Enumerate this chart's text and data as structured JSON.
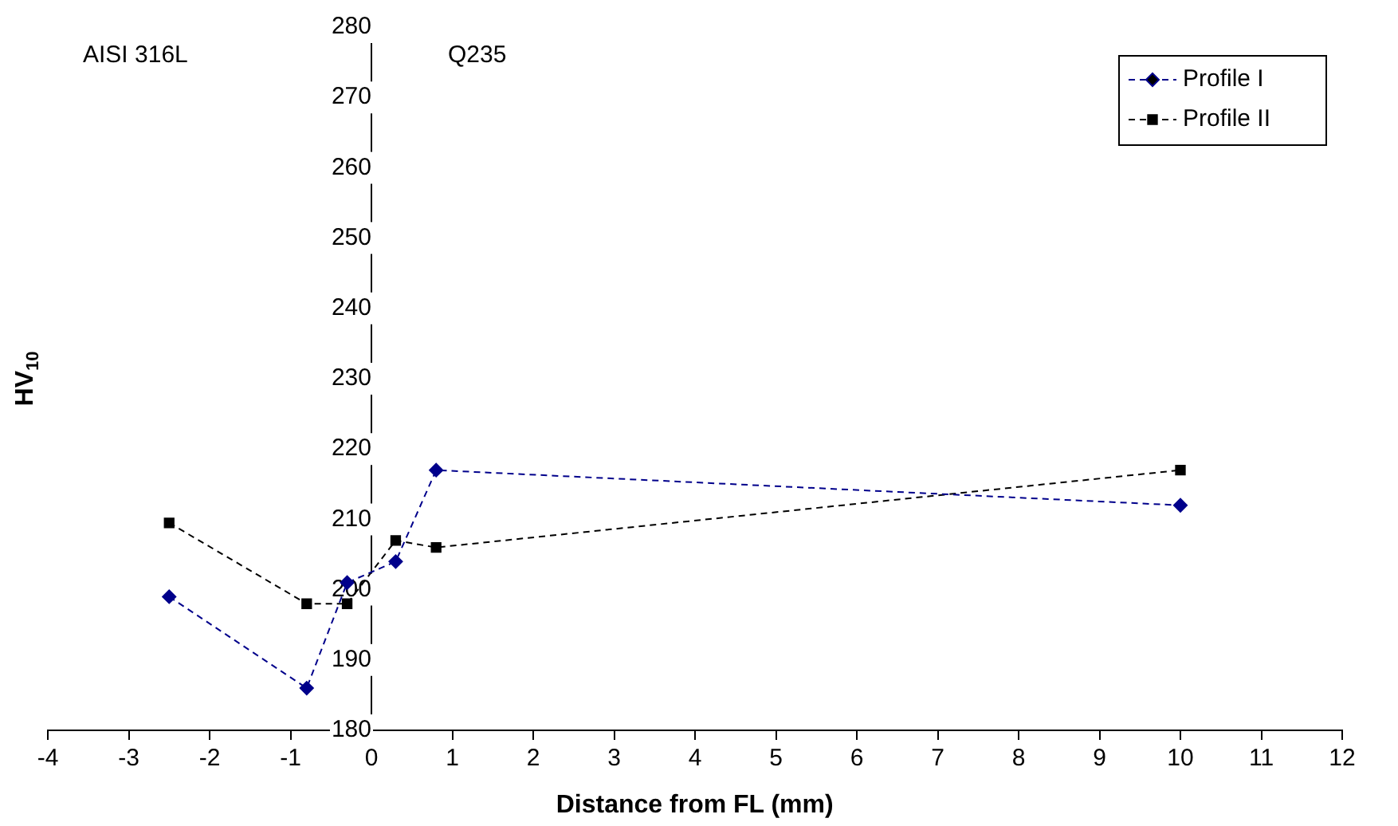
{
  "chart_data": {
    "type": "line",
    "xlabel": "Distance from FL (mm)",
    "ylabel": "HV$_{10}$",
    "xlim": [
      -4,
      12
    ],
    "xticks": [
      -4,
      -3,
      -2,
      -1,
      0,
      1,
      2,
      3,
      4,
      5,
      6,
      7,
      8,
      9,
      10,
      11,
      12
    ],
    "ylim": [
      180,
      280
    ],
    "yticks": [
      180,
      190,
      200,
      210,
      220,
      230,
      240,
      250,
      260,
      270,
      280
    ],
    "grid": false,
    "legend": "top right",
    "line_style": "dashed",
    "annotations": [
      "AISI 316L",
      "Q235"
    ],
    "series": [
      {
        "name": "Profile I",
        "color": "#00008b",
        "marker": "diamond",
        "x": [
          -2.5,
          -0.8,
          -0.3,
          0.3,
          0.8,
          10
        ],
        "values": [
          199,
          186,
          201,
          204,
          217,
          212
        ]
      },
      {
        "name": "Profile II",
        "color": "#000000",
        "marker": "square",
        "x": [
          -2.5,
          -0.8,
          -0.3,
          0.3,
          0.8,
          10
        ],
        "values": [
          209.5,
          198,
          198,
          207,
          206,
          217
        ]
      }
    ]
  }
}
